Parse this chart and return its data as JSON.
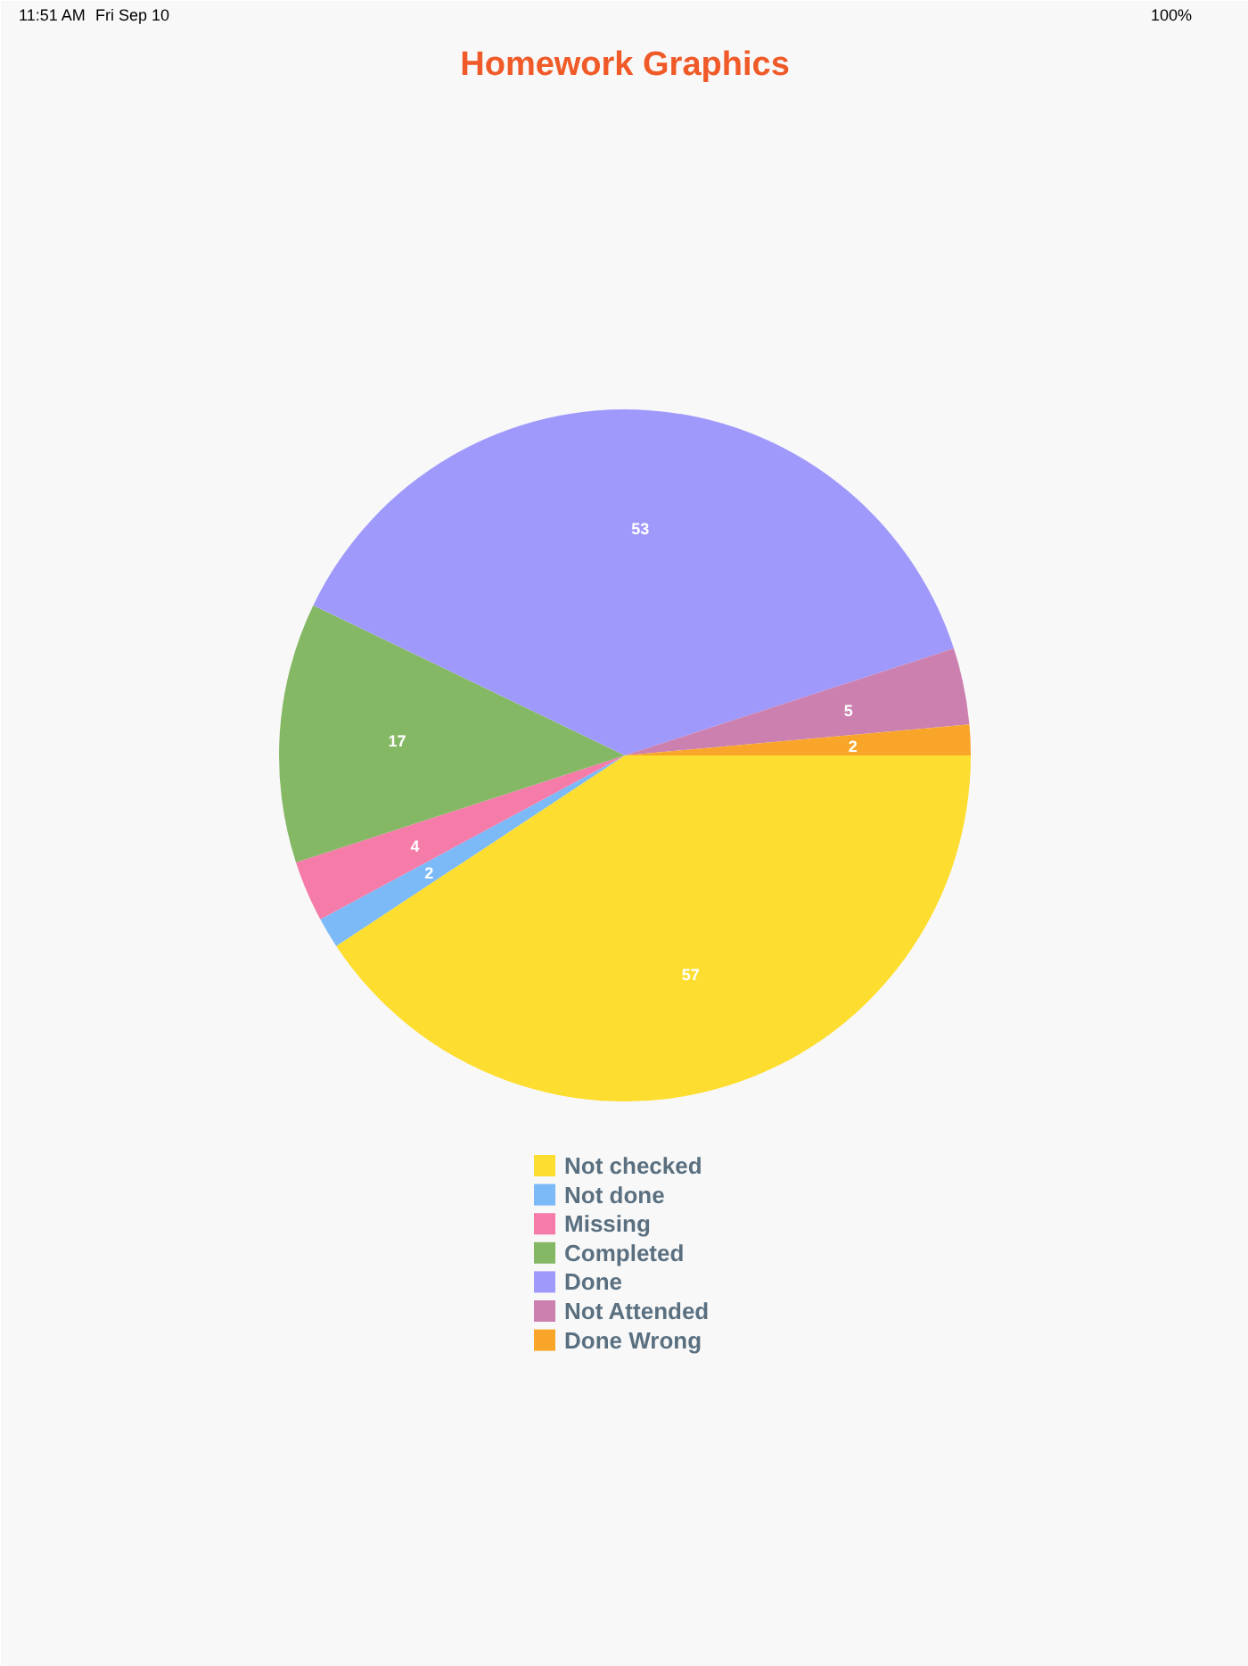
{
  "chart_data": {
    "type": "pie",
    "title": "Homework Graphics",
    "categories": [
      "Not checked",
      "Not done",
      "Missing",
      "Completed",
      "Done",
      "Not Attended",
      "Done Wrong"
    ],
    "values": [
      57,
      2,
      4,
      17,
      53,
      5,
      2
    ],
    "colors": [
      "#fdde30",
      "#7cb9f7",
      "#f57ba9",
      "#85b864",
      "#a099fc",
      "#cc80b0",
      "#f9a52a"
    ],
    "data_labels": true,
    "legend": "bottom",
    "annotations": [
      "11:51 AM",
      "Fri Sep 10",
      "100%"
    ]
  }
}
